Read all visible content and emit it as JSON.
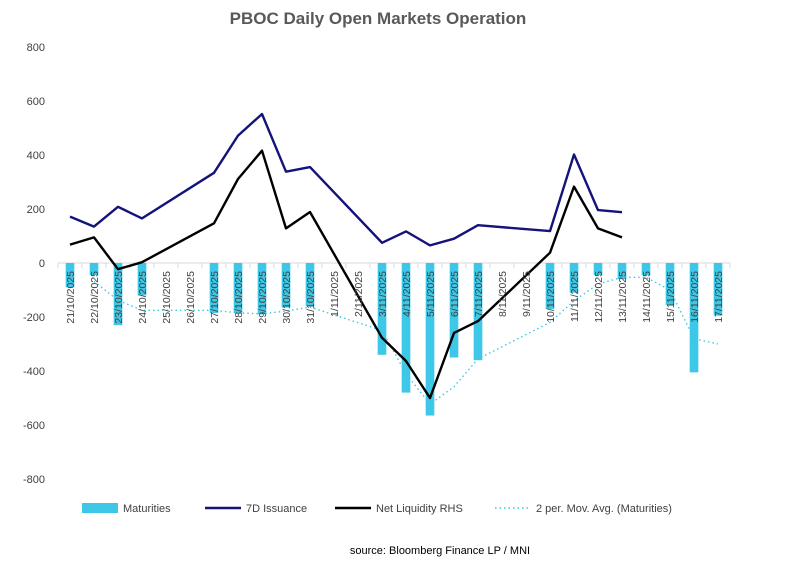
{
  "chart_data": {
    "type": "bar+line",
    "title": "PBOC Daily Open Markets Operation",
    "source": "source: Bloomberg Finance LP / MNI",
    "ylim": [
      -800,
      800
    ],
    "yticks": [
      800,
      600,
      400,
      200,
      0,
      -200,
      -400,
      -600,
      -800
    ],
    "categories": [
      "21/10/2025",
      "22/10/2025",
      "23/10/2025",
      "24/10/2025",
      "25/10/2025",
      "26/10/2025",
      "27/10/2025",
      "28/10/2025",
      "29/10/2025",
      "30/10/2025",
      "31/10/2025",
      "1/11/2025",
      "2/11/2025",
      "3/11/2025",
      "4/11/2025",
      "5/11/2025",
      "6/11/2025",
      "7/11/2025",
      "8/11/2025",
      "9/11/2025",
      "10/11/2025",
      "11/11/2025",
      "12/11/2025",
      "13/11/2025",
      "14/11/2025",
      "15/11/2025",
      "16/11/2025",
      "17/11/2025"
    ],
    "series": [
      {
        "name": "Maturities",
        "type": "bar",
        "color": "#3cc8e6",
        "values": [
          -90,
          -45,
          -230,
          -120,
          null,
          null,
          -185,
          -185,
          -190,
          -165,
          -160,
          null,
          null,
          -340,
          -480,
          -565,
          -350,
          -360,
          null,
          null,
          -170,
          -110,
          -45,
          -60,
          -45,
          -155,
          -405,
          -195
        ]
      },
      {
        "name": "7D Issuance",
        "type": "line",
        "color": "#14137a",
        "values": [
          172,
          135,
          208,
          165,
          null,
          null,
          334,
          472,
          552,
          338,
          355,
          null,
          null,
          75,
          117,
          65,
          90,
          140,
          null,
          null,
          118,
          402,
          196,
          188,
          null,
          null,
          null,
          null
        ]
      },
      {
        "name": "Net Liquidity RHS",
        "type": "line",
        "color": "#000000",
        "values": [
          68,
          95,
          -23,
          3,
          null,
          null,
          147,
          311,
          416,
          128,
          189,
          null,
          null,
          -277,
          -363,
          -500,
          -259,
          -215,
          null,
          null,
          38,
          283,
          128,
          95,
          null,
          null,
          null,
          null
        ]
      },
      {
        "name": "2 per. Mov. Avg. (Maturities)",
        "type": "line",
        "style": "dotted",
        "color": "#3cc8e6",
        "values": [
          null,
          -68,
          -138,
          -175,
          null,
          null,
          -175,
          -185,
          -188,
          -178,
          -163,
          null,
          null,
          -250,
          -410,
          -523,
          -458,
          -355,
          null,
          null,
          -220,
          -140,
          -78,
          -53,
          -53,
          -100,
          -280,
          -300
        ]
      }
    ]
  }
}
